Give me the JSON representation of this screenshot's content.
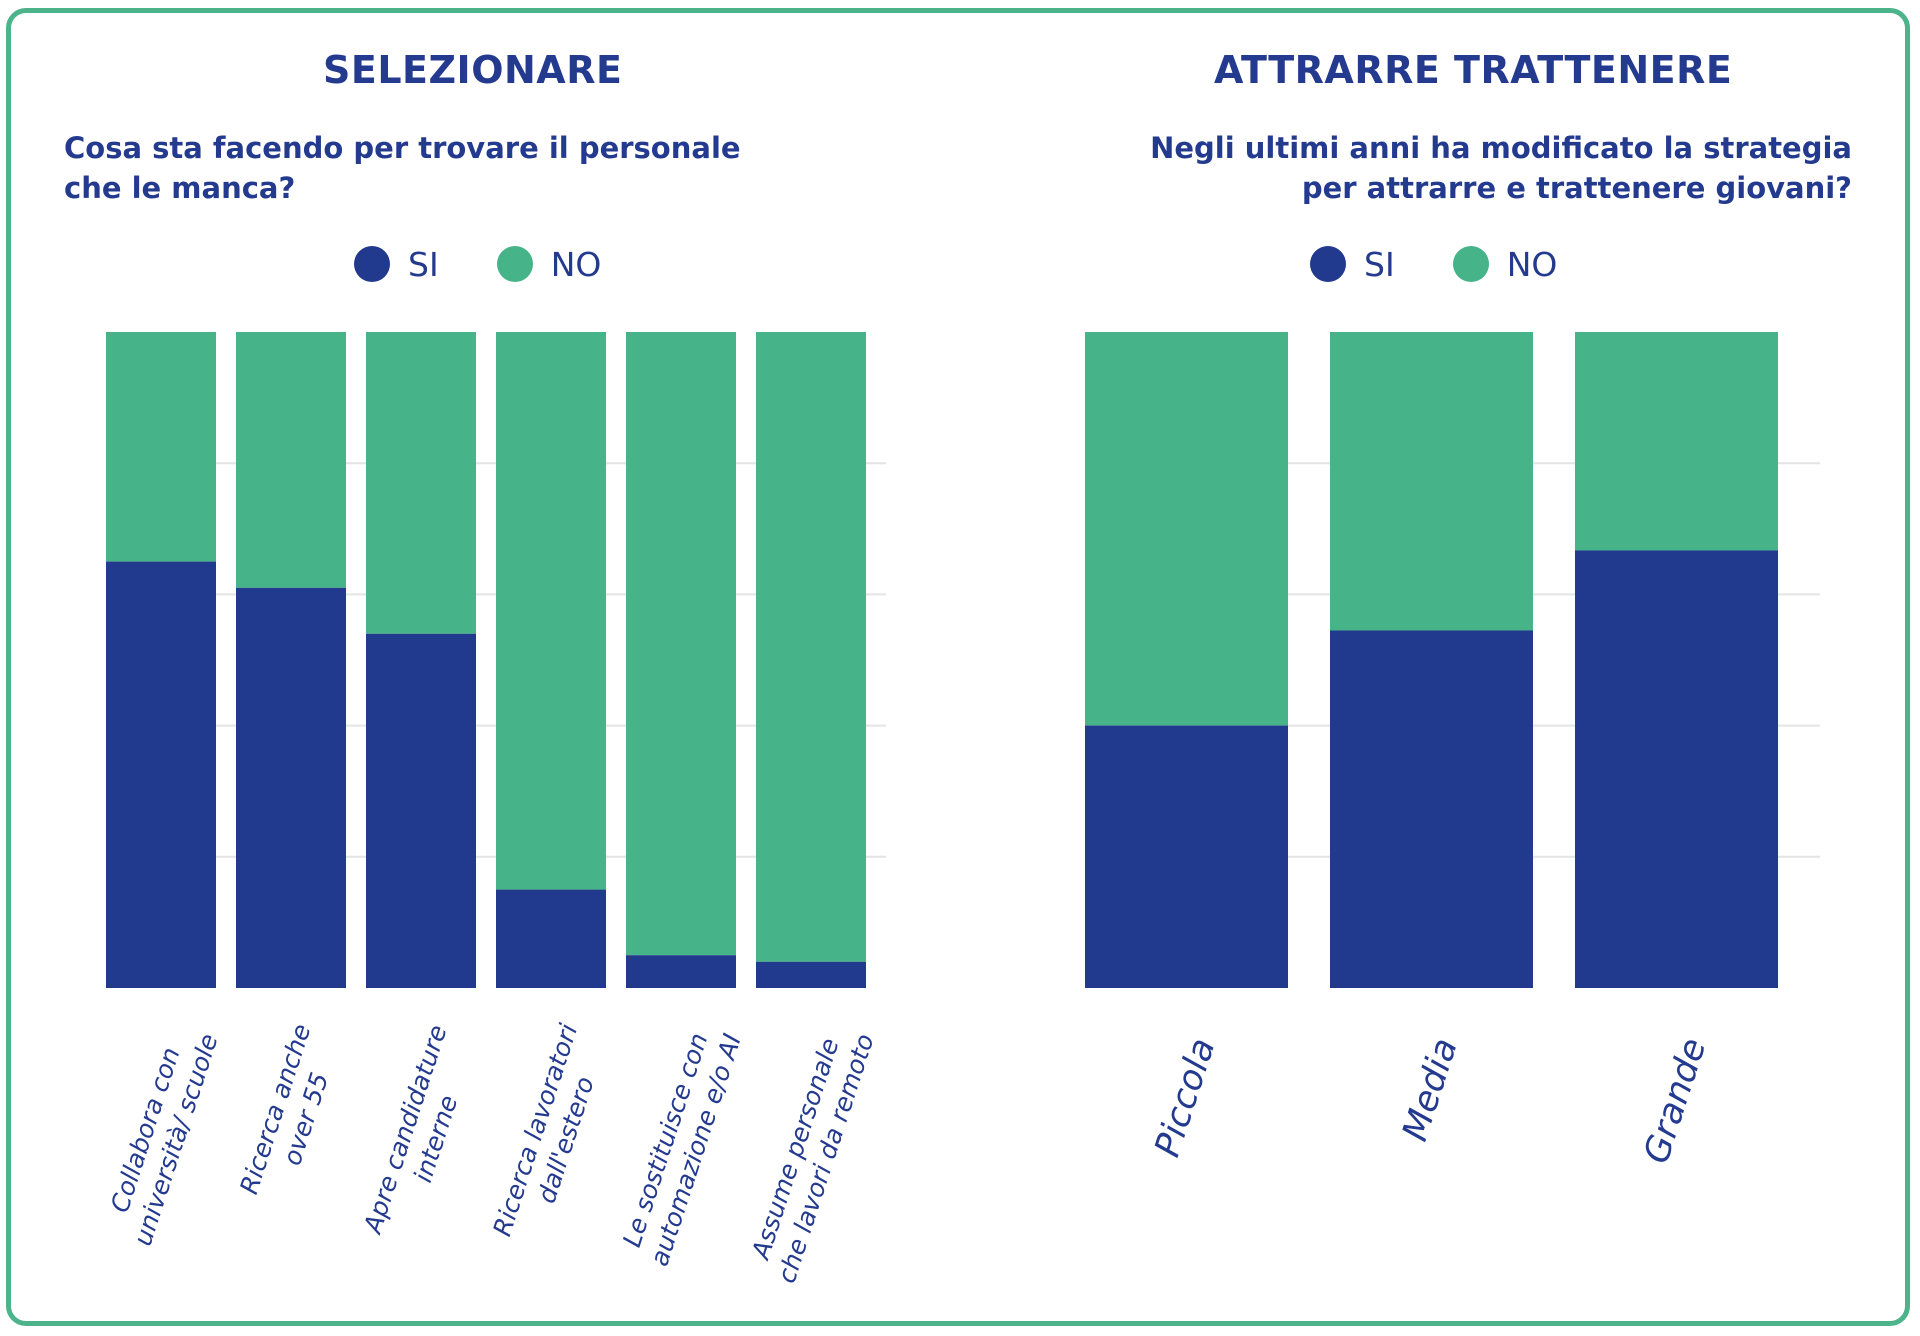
{
  "colors": {
    "si": "#223a8e",
    "no": "#46b389",
    "text": "#233a8f",
    "border": "#4db38a",
    "grid": "#ffffff"
  },
  "legend": {
    "si": "SI",
    "no": "NO"
  },
  "left_panel": {
    "title": "SELEZIONARE",
    "subtitle_line1": "Cosa sta facendo per trovare il personale",
    "subtitle_line2": "che le manca?"
  },
  "right_panel": {
    "title": "ATTRARRE TRATTENERE",
    "subtitle_line1": "Negli ultimi anni ha modificato la strategia",
    "subtitle_line2": "per attrarre e trattenere giovani?"
  },
  "chart_data": [
    {
      "type": "bar",
      "stacked": true,
      "categories": [
        [
          "Collabora con",
          "università/ scuole"
        ],
        [
          "Ricerca anche",
          "over 55"
        ],
        [
          "Apre candidature",
          "interne"
        ],
        [
          "Ricerca lavoratori",
          "dall'estero"
        ],
        [
          "Le sostituisce con",
          "automazione e/o AI"
        ],
        [
          "Assume personale",
          "che lavori da remoto"
        ]
      ],
      "series": [
        {
          "name": "SI",
          "values": [
            65,
            61,
            54,
            15,
            5,
            4
          ]
        },
        {
          "name": "NO",
          "values": [
            35,
            39,
            46,
            85,
            95,
            96
          ]
        }
      ],
      "ylim": [
        0,
        100
      ],
      "grid": true
    },
    {
      "type": "bar",
      "stacked": true,
      "categories": [
        [
          "Piccola"
        ],
        [
          "Media"
        ],
        [
          "Grande"
        ]
      ],
      "series": [
        {
          "name": "SI",
          "values": [
            40,
            54.5,
            66.7
          ]
        },
        {
          "name": "NO",
          "values": [
            60,
            45.5,
            33.3
          ]
        }
      ],
      "ylim": [
        0,
        100
      ],
      "grid": true
    }
  ]
}
